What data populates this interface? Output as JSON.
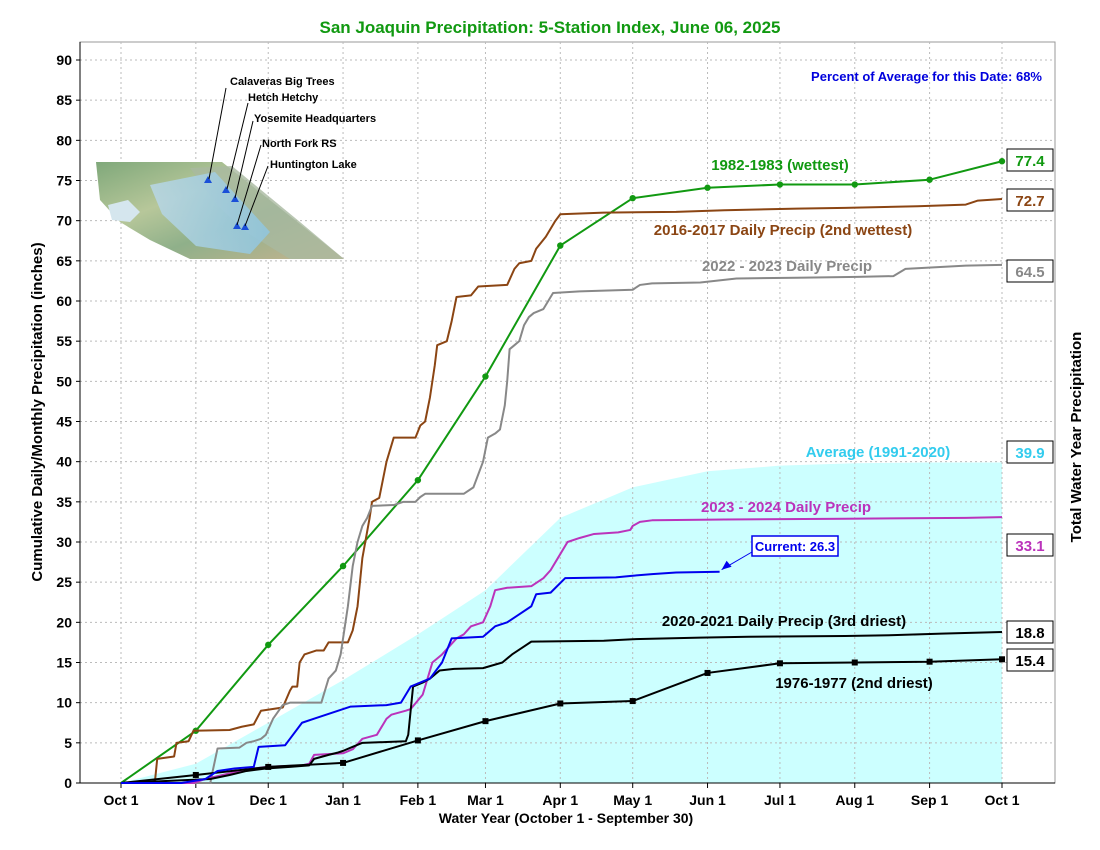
{
  "chart_data": {
    "type": "line",
    "title": "San Joaquin Precipitation: 5-Station Index, June 06, 2025",
    "xlabel": "Water Year (October 1 - September 30)",
    "ylabel": "Cumulative Daily/Monthly Precipitation (inches)",
    "ylabel_right": "Total Water Year Precipitation",
    "percent_note": "Percent of Average for this Date: 68%",
    "xlim": [
      0,
      365
    ],
    "ylim": [
      0,
      90
    ],
    "ytick_step": 5,
    "xticks": [
      {
        "day": 0,
        "label": "Oct 1"
      },
      {
        "day": 31,
        "label": "Nov 1"
      },
      {
        "day": 61,
        "label": "Dec 1"
      },
      {
        "day": 92,
        "label": "Jan 1"
      },
      {
        "day": 123,
        "label": "Feb 1"
      },
      {
        "day": 151,
        "label": "Mar 1"
      },
      {
        "day": 182,
        "label": "Apr 1"
      },
      {
        "day": 212,
        "label": "May 1"
      },
      {
        "day": 243,
        "label": "Jun 1"
      },
      {
        "day": 273,
        "label": "Jul 1"
      },
      {
        "day": 304,
        "label": "Aug 1"
      },
      {
        "day": 335,
        "label": "Sep 1"
      },
      {
        "day": 365,
        "label": "Oct 1"
      }
    ],
    "grid": true,
    "average": {
      "label": "Average (1991-2020)",
      "total": "39.9",
      "color": "#ccffff",
      "label_color": "#33ccee",
      "points": [
        [
          0,
          0
        ],
        [
          31,
          2.4
        ],
        [
          61,
          7.5
        ],
        [
          92,
          12.8
        ],
        [
          123,
          18.5
        ],
        [
          151,
          24
        ],
        [
          182,
          33
        ],
        [
          212,
          36.8
        ],
        [
          243,
          38.8
        ],
        [
          273,
          39.5
        ],
        [
          304,
          39.8
        ],
        [
          335,
          39.9
        ],
        [
          365,
          39.9
        ]
      ]
    },
    "series": [
      {
        "name": "1982-1983 (wettest)",
        "total": "77.4",
        "color": "#119911",
        "marker": "circle",
        "points": [
          [
            0,
            0
          ],
          [
            31,
            6.5
          ],
          [
            61,
            17.2
          ],
          [
            92,
            27
          ],
          [
            123,
            37.7
          ],
          [
            151,
            50.6
          ],
          [
            182,
            66.9
          ],
          [
            212,
            72.8
          ],
          [
            243,
            74.1
          ],
          [
            273,
            74.5
          ],
          [
            304,
            74.5
          ],
          [
            335,
            75.1
          ],
          [
            365,
            77.4
          ]
        ]
      },
      {
        "name": "2016-2017 Daily Precip (2nd wettest)",
        "total": "72.7",
        "color": "#8b4513",
        "marker": "none",
        "points": [
          [
            0,
            0
          ],
          [
            14,
            0
          ],
          [
            15,
            3
          ],
          [
            22,
            3.3
          ],
          [
            23,
            5
          ],
          [
            28,
            5.2
          ],
          [
            30,
            6.5
          ],
          [
            45,
            6.6
          ],
          [
            50,
            7
          ],
          [
            55,
            7.3
          ],
          [
            58,
            9
          ],
          [
            67,
            9.4
          ],
          [
            70,
            11.5
          ],
          [
            71,
            12
          ],
          [
            73,
            12
          ],
          [
            74,
            15
          ],
          [
            76,
            16
          ],
          [
            81,
            16.5
          ],
          [
            84,
            16.5
          ],
          [
            86,
            17.5
          ],
          [
            94,
            17.5
          ],
          [
            96,
            19
          ],
          [
            98,
            22
          ],
          [
            100,
            28
          ],
          [
            103,
            33
          ],
          [
            104,
            35
          ],
          [
            107,
            35.5
          ],
          [
            108,
            37
          ],
          [
            110,
            40
          ],
          [
            113,
            43
          ],
          [
            122,
            43
          ],
          [
            124,
            44.5
          ],
          [
            126,
            45
          ],
          [
            128,
            48
          ],
          [
            130,
            52
          ],
          [
            131,
            54.5
          ],
          [
            135,
            55
          ],
          [
            137,
            57.5
          ],
          [
            139,
            60.5
          ],
          [
            145,
            60.7
          ],
          [
            148,
            61.8
          ],
          [
            160,
            62
          ],
          [
            163,
            64
          ],
          [
            165,
            64.7
          ],
          [
            170,
            65
          ],
          [
            172,
            66.5
          ],
          [
            176,
            68
          ],
          [
            180,
            70
          ],
          [
            182,
            70.8
          ],
          [
            200,
            71
          ],
          [
            230,
            71.1
          ],
          [
            250,
            71.3
          ],
          [
            280,
            71.5
          ],
          [
            300,
            71.6
          ],
          [
            330,
            71.8
          ],
          [
            350,
            72
          ],
          [
            355,
            72.5
          ],
          [
            365,
            72.7
          ]
        ]
      },
      {
        "name": "2022 - 2023 Daily Precip",
        "total": "64.5",
        "color": "#888888",
        "marker": "none",
        "points": [
          [
            0,
            0
          ],
          [
            37,
            0
          ],
          [
            38,
            1.5
          ],
          [
            40,
            4.3
          ],
          [
            49,
            4.4
          ],
          [
            52,
            5
          ],
          [
            55,
            5.2
          ],
          [
            58,
            5.5
          ],
          [
            60,
            6
          ],
          [
            63,
            8
          ],
          [
            67,
            9.7
          ],
          [
            70,
            10
          ],
          [
            83,
            10
          ],
          [
            86,
            13
          ],
          [
            89,
            14
          ],
          [
            91,
            16
          ],
          [
            93,
            20
          ],
          [
            94,
            22
          ],
          [
            96,
            27
          ],
          [
            98,
            30
          ],
          [
            100,
            32
          ],
          [
            102,
            33
          ],
          [
            104,
            34.5
          ],
          [
            113,
            34.6
          ],
          [
            117,
            35
          ],
          [
            122,
            35
          ],
          [
            124,
            35.6
          ],
          [
            126,
            36
          ],
          [
            142,
            36
          ],
          [
            146,
            36.8
          ],
          [
            150,
            40
          ],
          [
            152,
            43
          ],
          [
            155,
            43.5
          ],
          [
            157,
            44
          ],
          [
            159,
            47
          ],
          [
            160,
            50
          ],
          [
            161,
            54
          ],
          [
            163,
            54.5
          ],
          [
            165,
            55
          ],
          [
            167,
            57
          ],
          [
            169,
            58
          ],
          [
            171,
            58.5
          ],
          [
            175,
            59
          ],
          [
            177,
            60
          ],
          [
            179,
            61
          ],
          [
            190,
            61.2
          ],
          [
            212,
            61.4
          ],
          [
            215,
            62
          ],
          [
            220,
            62.2
          ],
          [
            240,
            62.3
          ],
          [
            255,
            62.8
          ],
          [
            280,
            62.9
          ],
          [
            305,
            63
          ],
          [
            320,
            63.1
          ],
          [
            325,
            64
          ],
          [
            350,
            64.4
          ],
          [
            365,
            64.5
          ]
        ]
      },
      {
        "name": "2023 - 2024 Daily Precip",
        "total": "33.1",
        "color": "#bb33bb",
        "marker": "none",
        "points": [
          [
            0,
            0
          ],
          [
            30,
            0
          ],
          [
            35,
            0.5
          ],
          [
            45,
            1.2
          ],
          [
            55,
            1.8
          ],
          [
            60,
            2
          ],
          [
            75,
            2.2
          ],
          [
            78,
            2.4
          ],
          [
            80,
            3.5
          ],
          [
            92,
            3.7
          ],
          [
            96,
            4.2
          ],
          [
            100,
            5.5
          ],
          [
            106,
            6
          ],
          [
            110,
            8
          ],
          [
            112,
            8.5
          ],
          [
            118,
            9
          ],
          [
            120,
            9.2
          ],
          [
            125,
            11
          ],
          [
            128,
            14
          ],
          [
            129,
            15
          ],
          [
            133,
            16
          ],
          [
            139,
            18
          ],
          [
            142,
            18.5
          ],
          [
            145,
            19.5
          ],
          [
            150,
            20
          ],
          [
            153,
            22
          ],
          [
            155,
            24
          ],
          [
            160,
            24.3
          ],
          [
            170,
            24.5
          ],
          [
            175,
            25.5
          ],
          [
            178,
            26.5
          ],
          [
            181,
            28
          ],
          [
            185,
            30
          ],
          [
            190,
            30.5
          ],
          [
            196,
            31
          ],
          [
            206,
            31.2
          ],
          [
            211,
            31.5
          ],
          [
            212,
            32
          ],
          [
            215,
            32.5
          ],
          [
            220,
            32.7
          ],
          [
            250,
            32.8
          ],
          [
            300,
            32.9
          ],
          [
            350,
            33
          ],
          [
            365,
            33.1
          ]
        ]
      },
      {
        "name": "2020-2021 Daily Precip (3rd driest)",
        "total": "18.8",
        "color": "#000000",
        "marker": "none",
        "points": [
          [
            0,
            0
          ],
          [
            37,
            0.5
          ],
          [
            45,
            1
          ],
          [
            52,
            1.5
          ],
          [
            60,
            1.8
          ],
          [
            70,
            2
          ],
          [
            78,
            2.2
          ],
          [
            80,
            3
          ],
          [
            86,
            3.5
          ],
          [
            90,
            3.8
          ],
          [
            92,
            4
          ],
          [
            96,
            4.5
          ],
          [
            100,
            5
          ],
          [
            110,
            5.1
          ],
          [
            118,
            5.2
          ],
          [
            119,
            6
          ],
          [
            120,
            9
          ],
          [
            121,
            12
          ],
          [
            125,
            12.5
          ],
          [
            128,
            13
          ],
          [
            132,
            14
          ],
          [
            138,
            14.2
          ],
          [
            150,
            14.3
          ],
          [
            158,
            15
          ],
          [
            162,
            16
          ],
          [
            167,
            17
          ],
          [
            170,
            17.6
          ],
          [
            200,
            17.7
          ],
          [
            212,
            17.9
          ],
          [
            240,
            18.1
          ],
          [
            260,
            18.2
          ],
          [
            300,
            18.3
          ],
          [
            320,
            18.4
          ],
          [
            340,
            18.6
          ],
          [
            365,
            18.8
          ]
        ]
      },
      {
        "name": "1976-1977 (2nd driest)",
        "total": "15.4",
        "color": "#000000",
        "marker": "square",
        "points": [
          [
            0,
            0
          ],
          [
            31,
            1
          ],
          [
            61,
            2
          ],
          [
            92,
            2.5
          ],
          [
            123,
            5.3
          ],
          [
            151,
            7.7
          ],
          [
            182,
            9.9
          ],
          [
            212,
            10.2
          ],
          [
            243,
            13.7
          ],
          [
            273,
            14.9
          ],
          [
            304,
            15
          ],
          [
            335,
            15.1
          ],
          [
            365,
            15.4
          ]
        ]
      },
      {
        "name": "",
        "total": "",
        "color": "#0000ee",
        "marker": "none",
        "points": [
          [
            0,
            0
          ],
          [
            25,
            0
          ],
          [
            35,
            0.5
          ],
          [
            40,
            1.5
          ],
          [
            47,
            1.8
          ],
          [
            55,
            2
          ],
          [
            57,
            4.5
          ],
          [
            68,
            4.7
          ],
          [
            70,
            5.5
          ],
          [
            75,
            7.5
          ],
          [
            80,
            8
          ],
          [
            85,
            8.5
          ],
          [
            90,
            9
          ],
          [
            95,
            9.5
          ],
          [
            110,
            9.7
          ],
          [
            116,
            10
          ],
          [
            120,
            12
          ],
          [
            128,
            13
          ],
          [
            133,
            15
          ],
          [
            137,
            18
          ],
          [
            150,
            18.2
          ],
          [
            155,
            19.5
          ],
          [
            160,
            20
          ],
          [
            165,
            21
          ],
          [
            170,
            22
          ],
          [
            172,
            23.5
          ],
          [
            178,
            23.7
          ],
          [
            184,
            25.5
          ],
          [
            205,
            25.6
          ],
          [
            212,
            25.8
          ],
          [
            220,
            26
          ],
          [
            230,
            26.2
          ],
          [
            248,
            26.3
          ]
        ]
      }
    ],
    "current_label": "Current: 26.3",
    "map": {
      "stations": [
        {
          "name": "Calaveras Big Trees"
        },
        {
          "name": "Hetch Hetchy"
        },
        {
          "name": "Yosemite Headquarters"
        },
        {
          "name": "North Fork RS"
        },
        {
          "name": "Huntington Lake"
        }
      ]
    }
  }
}
